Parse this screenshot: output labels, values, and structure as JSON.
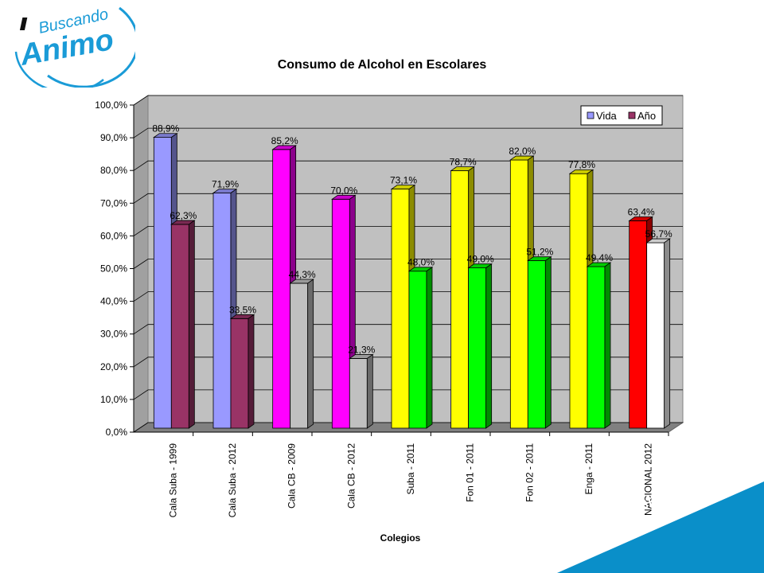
{
  "logo": {
    "top_text": "Buscando",
    "bottom_text": "Animo"
  },
  "banner": {
    "url": "www.buscandoanimo.org",
    "color": "#0a8fc9"
  },
  "chart_data": {
    "type": "bar",
    "title": "Consumo de Alcohol en Escolares",
    "xlabel": "Colegios",
    "ylabel": "",
    "ylim": [
      0,
      100
    ],
    "y_ticks": [
      "0,0%",
      "10,0%",
      "20,0%",
      "30,0%",
      "40,0%",
      "50,0%",
      "60,0%",
      "70,0%",
      "80,0%",
      "90,0%",
      "100,0%"
    ],
    "categories": [
      "Cala Suba - 1999",
      "Cala Suba - 2012",
      "Cala CB - 2009",
      "Cala CB - 2012",
      "Suba - 2011",
      "Fon 01 - 2011",
      "Fon 02 - 2011",
      "Enga - 2011",
      "NACIONAL 2012"
    ],
    "series": [
      {
        "name": "Vida",
        "values": [
          88.9,
          71.9,
          85.2,
          70.0,
          73.1,
          78.7,
          82.0,
          77.8,
          63.4
        ],
        "labels": [
          "88,9%",
          "71,9%",
          "85,2%",
          "70,0%",
          "73,1%",
          "78,7%",
          "82,0%",
          "77,8%",
          "63,4%"
        ],
        "colors": [
          "#9999ff",
          "#9999ff",
          "#ff00ff",
          "#ff00ff",
          "#ffff00",
          "#ffff00",
          "#ffff00",
          "#ffff00",
          "#ff0000"
        ]
      },
      {
        "name": "Año",
        "values": [
          62.3,
          33.5,
          44.3,
          21.3,
          48.0,
          49.0,
          51.2,
          49.4,
          56.7
        ],
        "labels": [
          "62,3%",
          "33,5%",
          "44,3%",
          "21,3%",
          "48,0%",
          "49,0%",
          "51,2%",
          "49,4%",
          "56,7%"
        ],
        "colors": [
          "#993366",
          "#993366",
          "#c0c0c0",
          "#c0c0c0",
          "#00ff00",
          "#00ff00",
          "#00ff00",
          "#00ff00",
          "#ffffff"
        ]
      }
    ],
    "legend": [
      {
        "name": "Vida",
        "color": "#9999ff"
      },
      {
        "name": "Año",
        "color": "#993366"
      }
    ],
    "legend_position": "top-right",
    "grid": true,
    "colors": {
      "wall": "#c0c0c0",
      "floor": "#808080"
    }
  }
}
